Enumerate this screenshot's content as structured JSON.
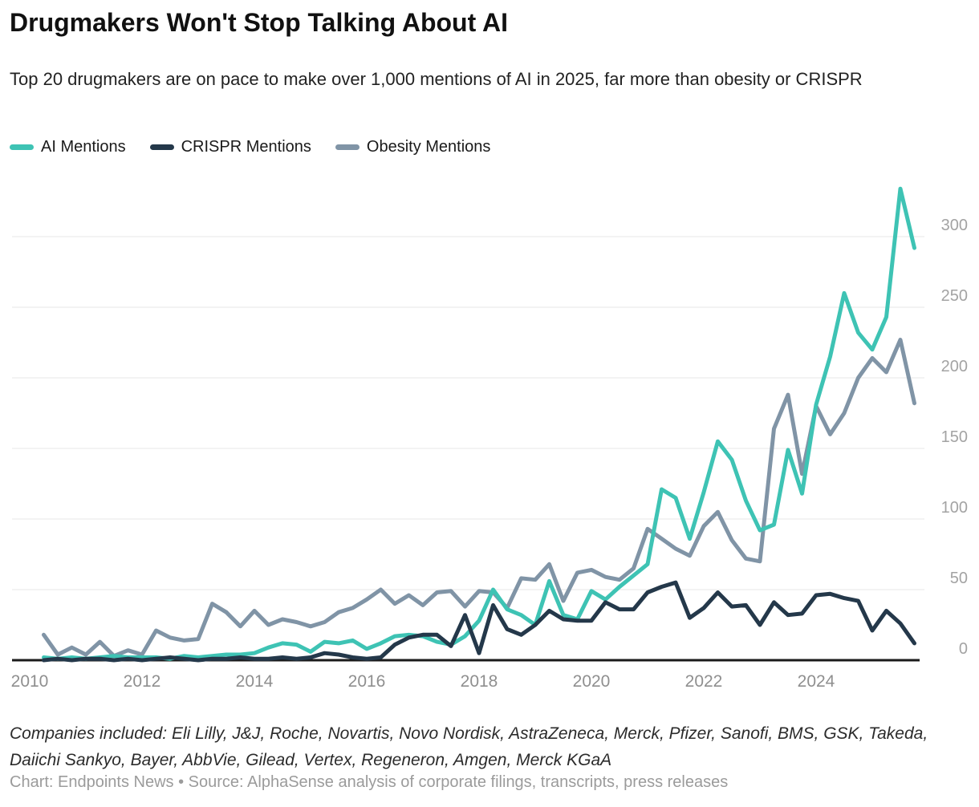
{
  "header": {
    "title": "Drugmakers Won't Stop Talking About AI",
    "subtitle": "Top 20 drugmakers are on pace to make over 1,000 mentions of AI in 2025, far more than obesity or CRISPR"
  },
  "legend": [
    {
      "label": "AI Mentions",
      "color": "#3EC3B4"
    },
    {
      "label": "CRISPR Mentions",
      "color": "#24384A"
    },
    {
      "label": "Obesity Mentions",
      "color": "#8094A6"
    }
  ],
  "chart_data": {
    "type": "line",
    "title": "Drugmakers Won't Stop Talking About AI",
    "xlabel": "",
    "ylabel": "",
    "x_tick_labels": [
      "2010",
      "2012",
      "2014",
      "2016",
      "2018",
      "2020",
      "2022",
      "2024"
    ],
    "y_ticks": [
      0,
      50,
      100,
      150,
      200,
      250,
      300
    ],
    "ylim": [
      0,
      345
    ],
    "grid": "horizontal",
    "y_axis_side": "right",
    "legend_position": "top",
    "x": [
      "2010 Q1",
      "2010 Q2",
      "2010 Q3",
      "2010 Q4",
      "2011 Q1",
      "2011 Q2",
      "2011 Q3",
      "2011 Q4",
      "2012 Q1",
      "2012 Q2",
      "2012 Q3",
      "2012 Q4",
      "2013 Q1",
      "2013 Q2",
      "2013 Q3",
      "2013 Q4",
      "2014 Q1",
      "2014 Q2",
      "2014 Q3",
      "2014 Q4",
      "2015 Q1",
      "2015 Q2",
      "2015 Q3",
      "2015 Q4",
      "2016 Q1",
      "2016 Q2",
      "2016 Q3",
      "2016 Q4",
      "2017 Q1",
      "2017 Q2",
      "2017 Q3",
      "2017 Q4",
      "2018 Q1",
      "2018 Q2",
      "2018 Q3",
      "2018 Q4",
      "2019 Q1",
      "2019 Q2",
      "2019 Q3",
      "2019 Q4",
      "2020 Q1",
      "2020 Q2",
      "2020 Q3",
      "2020 Q4",
      "2021 Q1",
      "2021 Q2",
      "2021 Q3",
      "2021 Q4",
      "2022 Q1",
      "2022 Q2",
      "2022 Q3",
      "2022 Q4",
      "2023 Q1",
      "2023 Q2",
      "2023 Q3",
      "2023 Q4",
      "2024 Q1",
      "2024 Q2",
      "2024 Q3",
      "2024 Q4",
      "2025 Q1",
      "2025 Q2",
      "2025 Q3"
    ],
    "series": [
      {
        "name": "AI Mentions",
        "color": "#3EC3B4",
        "values": [
          2,
          1,
          2,
          1,
          2,
          3,
          2,
          2,
          2,
          1,
          3,
          2,
          3,
          4,
          4,
          5,
          9,
          12,
          11,
          6,
          13,
          12,
          14,
          8,
          12,
          17,
          18,
          17,
          13,
          11,
          17,
          28,
          50,
          36,
          32,
          25,
          56,
          32,
          29,
          49,
          43,
          52,
          60,
          68,
          121,
          115,
          86,
          119,
          155,
          142,
          113,
          92,
          96,
          149,
          118,
          181,
          215,
          260,
          232,
          220,
          243,
          334,
          292
        ]
      },
      {
        "name": "CRISPR Mentions",
        "color": "#24384A",
        "values": [
          0,
          1,
          0,
          1,
          1,
          0,
          1,
          0,
          1,
          2,
          1,
          0,
          1,
          1,
          2,
          1,
          1,
          2,
          1,
          2,
          5,
          4,
          2,
          1,
          2,
          11,
          16,
          18,
          18,
          10,
          32,
          5,
          39,
          22,
          18,
          25,
          35,
          29,
          28,
          28,
          41,
          36,
          36,
          48,
          52,
          55,
          30,
          37,
          48,
          38,
          39,
          25,
          41,
          32,
          33,
          46,
          47,
          44,
          42,
          21,
          35,
          26,
          12
        ]
      },
      {
        "name": "Obesity Mentions",
        "color": "#8094A6",
        "values": [
          18,
          4,
          9,
          4,
          13,
          3,
          7,
          4,
          21,
          16,
          14,
          15,
          40,
          34,
          24,
          35,
          25,
          29,
          27,
          24,
          27,
          34,
          37,
          43,
          50,
          40,
          46,
          39,
          48,
          49,
          38,
          49,
          48,
          37,
          58,
          57,
          68,
          42,
          62,
          64,
          59,
          57,
          65,
          93,
          86,
          79,
          74,
          95,
          105,
          85,
          72,
          70,
          164,
          188,
          132,
          180,
          160,
          175,
          200,
          214,
          204,
          227,
          182
        ]
      }
    ]
  },
  "notes": {
    "companies": "Companies included: Eli Lilly, J&J, Roche, Novartis, Novo Nordisk, AstraZeneca, Merck, Pfizer, Sanofi, BMS, GSK, Takeda, Daiichi Sankyo, Bayer, AbbVie, Gilead, Vertex, Regeneron, Amgen, Merck KGaA",
    "source": "Chart: Endpoints News • Source: AlphaSense analysis of corporate filings, transcripts, press releases"
  }
}
